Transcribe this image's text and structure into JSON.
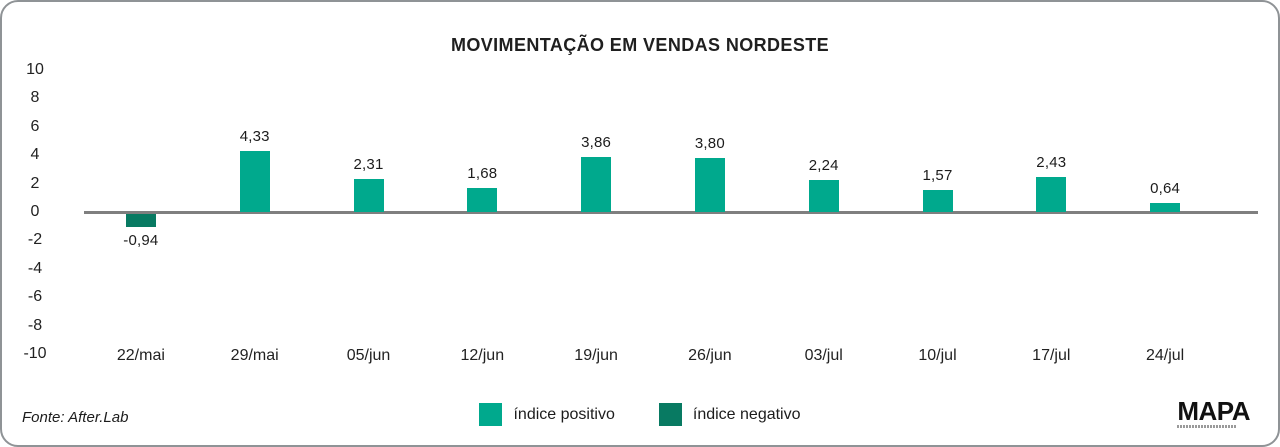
{
  "title": "MOVIMENTAÇÃO EM VENDAS NORDESTE",
  "chart_data": {
    "type": "bar",
    "title": "MOVIMENTAÇÃO EM VENDAS NORDESTE",
    "categories": [
      "22/mai",
      "29/mai",
      "05/jun",
      "12/jun",
      "19/jun",
      "26/jun",
      "03/jul",
      "10/jul",
      "17/jul",
      "24/jul"
    ],
    "values": [
      -0.94,
      4.33,
      2.31,
      1.68,
      3.86,
      3.8,
      2.24,
      1.57,
      2.43,
      0.64
    ],
    "value_labels": [
      "-0,94",
      "4,33",
      "2,31",
      "1,68",
      "3,86",
      "3,80",
      "2,24",
      "1,57",
      "2,43",
      "0,64"
    ],
    "xlabel": "",
    "ylabel": "",
    "ylim": [
      -10,
      10
    ],
    "yticks": [
      10,
      8,
      6,
      4,
      2,
      0,
      -2,
      -4,
      -6,
      -8,
      -10
    ],
    "grid": false,
    "legend_position": "bottom",
    "colors": {
      "positive": "#00a98d",
      "negative": "#087a62",
      "axis_line": "#7f7f7f"
    },
    "legend": [
      {
        "label": "índice positivo",
        "color": "#00a98d"
      },
      {
        "label": "índice negativo",
        "color": "#087a62"
      }
    ]
  },
  "footer": {
    "source": "Fonte: After.Lab",
    "logo": "MAPA"
  }
}
